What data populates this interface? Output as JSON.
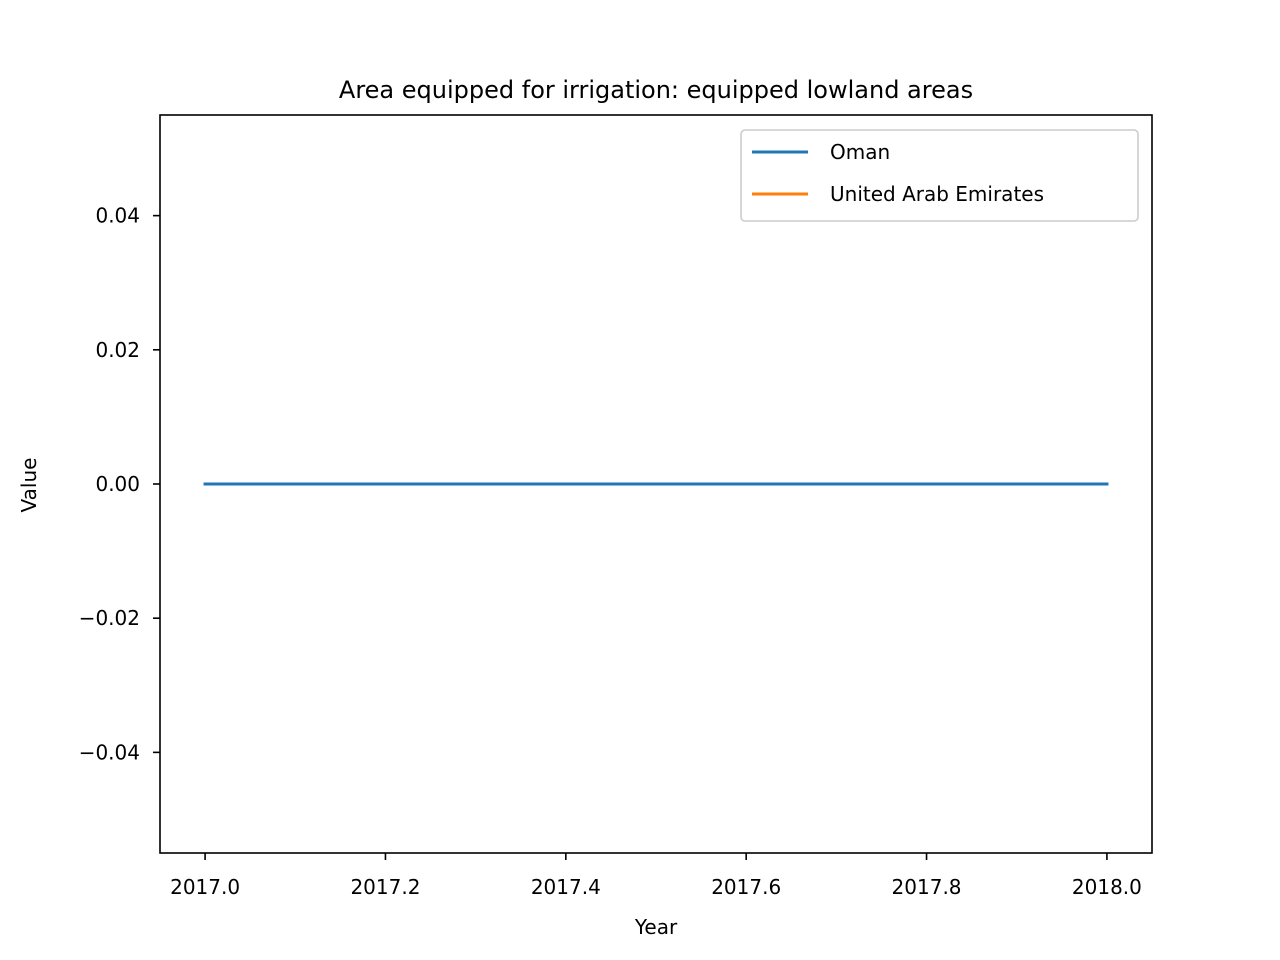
{
  "chart_data": {
    "type": "line",
    "title": "Area equipped for irrigation: equipped lowland areas",
    "xlabel": "Year",
    "ylabel": "Value",
    "xlim": [
      2016.95,
      2018.05
    ],
    "ylim": [
      -0.055,
      0.055
    ],
    "xticks": [
      2017.0,
      2017.2,
      2017.4,
      2017.6,
      2017.8,
      2018.0
    ],
    "xtick_labels": [
      "2017.0",
      "2017.2",
      "2017.4",
      "2017.6",
      "2017.8",
      "2018.0"
    ],
    "yticks": [
      -0.04,
      -0.02,
      0.0,
      0.02,
      0.04
    ],
    "ytick_labels": [
      "−0.04",
      "−0.02",
      "0.00",
      "0.02",
      "0.04"
    ],
    "grid": false,
    "legend_position": "top-right",
    "series": [
      {
        "name": "United Arab Emirates",
        "color": "#ff7f0e",
        "x": [
          2017,
          2018
        ],
        "y": [
          0,
          0
        ]
      },
      {
        "name": "Oman",
        "color": "#1f77b4",
        "x": [
          2017,
          2018
        ],
        "y": [
          0,
          0
        ]
      }
    ],
    "legend_order": [
      "Oman",
      "United Arab Emirates"
    ]
  }
}
